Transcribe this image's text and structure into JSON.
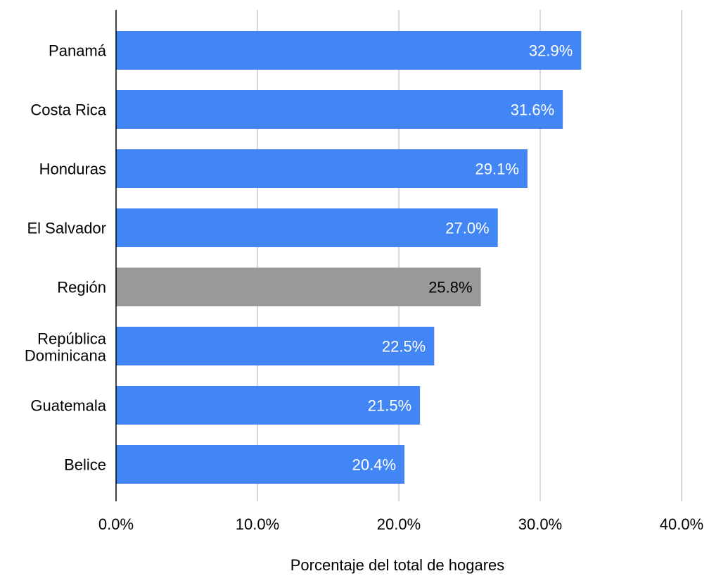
{
  "chart_data": {
    "type": "bar",
    "orientation": "horizontal",
    "title": "",
    "xlabel": "Porcentaje del total de hogares",
    "ylabel": "",
    "categories": [
      "Panamá",
      "Costa Rica",
      "Honduras",
      "El Salvador",
      "Región",
      "República Dominicana",
      "Guatemala",
      "Belice"
    ],
    "values": [
      32.9,
      31.6,
      29.1,
      27.0,
      25.8,
      22.5,
      21.5,
      20.4
    ],
    "data_labels": [
      "32.9%",
      "31.6%",
      "29.1%",
      "27.0%",
      "25.8%",
      "22.5%",
      "21.5%",
      "20.4%"
    ],
    "xlim": [
      0,
      40
    ],
    "x_ticks": [
      0,
      10,
      20,
      30,
      40
    ],
    "x_tick_labels": [
      "0.0%",
      "10.0%",
      "20.0%",
      "30.0%",
      "40.0%"
    ],
    "grid": true,
    "legend": "none",
    "colors": {
      "default_bar": "#4285f4",
      "highlight_bar": "#999999",
      "highlight_category": "Región",
      "default_label_text": "#ffffff",
      "highlight_label_text": "#000000",
      "grid": "#cccccc",
      "axis": "#000000"
    }
  }
}
